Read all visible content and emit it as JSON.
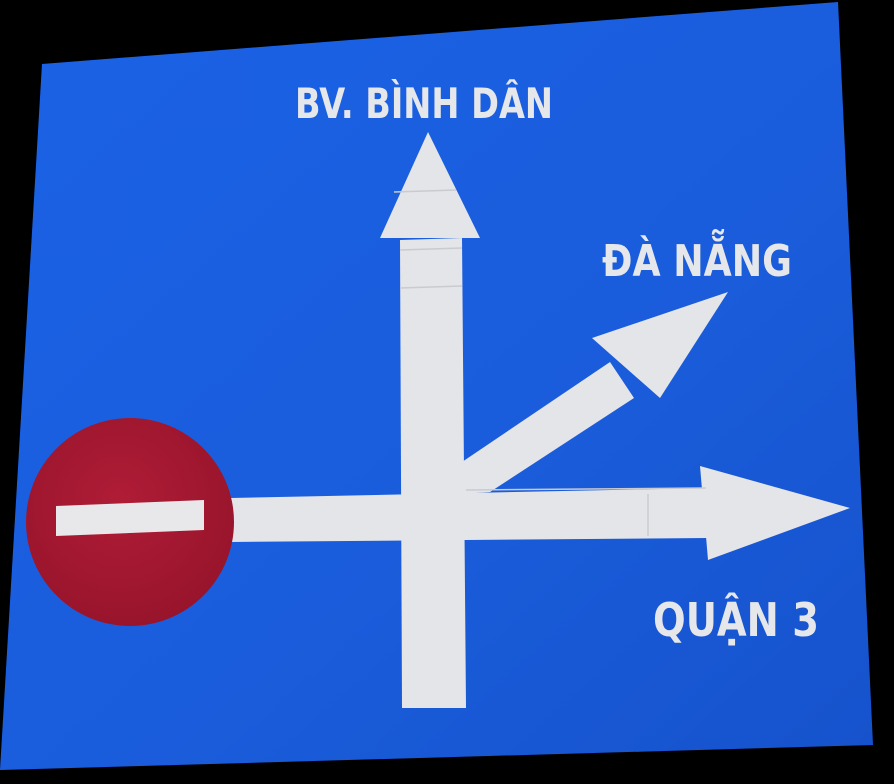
{
  "sign": {
    "panel_color": "#1a5fe0",
    "arrow_color": "#e4e5e8",
    "no_entry_color": "#a41830",
    "no_entry_bar_color": "#e8e8ea",
    "icon": "no-entry-icon",
    "destinations": {
      "up": "BV. BÌNH DÂN",
      "diagonal": "ĐÀ NẴNG",
      "right": "QUẬN 3"
    }
  }
}
